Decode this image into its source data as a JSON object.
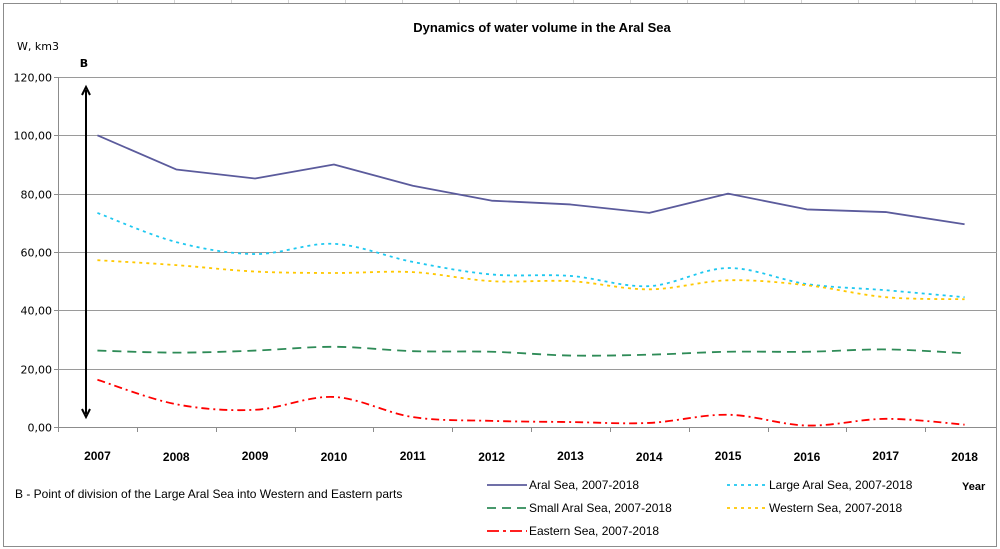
{
  "chart_data": {
    "type": "line",
    "title": "Dynamics of water volume in the Aral Sea",
    "ylabel": "W,  km3",
    "xlabel": "Year",
    "ylim": [
      0,
      120
    ],
    "ytick_step": 20,
    "ytick_labels": [
      "0,00",
      "20,00",
      "40,00",
      "60,00",
      "80,00",
      "100,00",
      "120,00"
    ],
    "grid": true,
    "categories": [
      "2007",
      "2008",
      "2009",
      "2010",
      "2011",
      "2012",
      "2013",
      "2014",
      "2015",
      "2016",
      "2017",
      "2018"
    ],
    "series": [
      {
        "name": "Aral Sea, 2007-2018",
        "color": "#5b5b9c",
        "style": "solid",
        "values": [
          100.0,
          88.3,
          85.2,
          90.0,
          82.7,
          77.6,
          76.3,
          73.4,
          80.0,
          74.6,
          73.7,
          69.5
        ]
      },
      {
        "name": "Large Aral Sea, 2007-2018",
        "color": "#1ec8f0",
        "style": "dotted",
        "values": [
          73.4,
          63.4,
          59.3,
          62.8,
          56.6,
          52.3,
          51.8,
          48.3,
          54.5,
          49.0,
          46.9,
          44.5
        ]
      },
      {
        "name": "Small Aral Sea, 2007-2018",
        "color": "#2e8b57",
        "style": "dashed",
        "values": [
          26.2,
          25.5,
          26.2,
          27.5,
          26.0,
          25.8,
          24.5,
          24.8,
          25.8,
          25.8,
          26.6,
          25.3
        ]
      },
      {
        "name": "Western Sea, 2007-2018",
        "color": "#ffc800",
        "style": "dotted",
        "values": [
          57.2,
          55.5,
          53.3,
          52.8,
          53.1,
          50.0,
          50.0,
          47.2,
          50.3,
          48.6,
          44.5,
          43.8
        ]
      },
      {
        "name": "Eastern Sea, 2007-2018",
        "color": "#ff0000",
        "style": "dashdot",
        "values": [
          16.2,
          7.8,
          5.9,
          10.3,
          3.4,
          2.1,
          1.7,
          1.4,
          4.2,
          0.5,
          2.8,
          0.8
        ]
      }
    ],
    "legend": {
      "placement": "bottom-right",
      "order": [
        "Aral Sea, 2007-2018",
        "Large Aral Sea, 2007-2018",
        "Small Aral Sea, 2007-2018",
        "Western Sea, 2007-2018",
        "Eastern Sea, 2007-2018"
      ]
    },
    "annotations": {
      "marker_label": "B",
      "marker": "double-headed vertical arrow near 2007 spanning the y range",
      "note": "B - Point of division of the Large Aral Sea into Western and Eastern parts"
    }
  }
}
